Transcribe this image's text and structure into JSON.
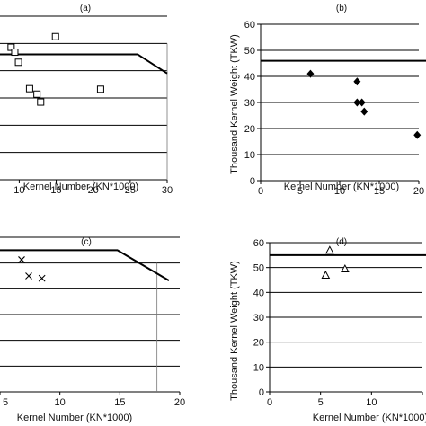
{
  "chart_data": [
    {
      "panel": "(a)",
      "type": "scatter",
      "xlabel": "Kernel Number (KN*1000)",
      "ylabel": "",
      "xlim": [
        0,
        30
      ],
      "ylim": [
        0,
        60
      ],
      "xticks": [
        0,
        5,
        10,
        15,
        20,
        25,
        30
      ],
      "xtick_labels": [
        "",
        "",
        "10",
        "15",
        "20",
        "25",
        "30"
      ],
      "yticks": [
        0,
        10,
        20,
        30,
        40,
        50,
        60
      ],
      "ytick_labels": [],
      "grid": "horizontal",
      "marker": "square",
      "boundary": [
        [
          0,
          46
        ],
        [
          26,
          46
        ],
        [
          30,
          39
        ]
      ],
      "vline_x": 30,
      "points": [
        {
          "x": 8.9,
          "y": 48.6
        },
        {
          "x": 9.4,
          "y": 46.8
        },
        {
          "x": 9.9,
          "y": 43.1
        },
        {
          "x": 14.9,
          "y": 52.5
        },
        {
          "x": 11.4,
          "y": 33.4
        },
        {
          "x": 12.4,
          "y": 31.4
        },
        {
          "x": 12.9,
          "y": 28.5
        },
        {
          "x": 21,
          "y": 33.2
        }
      ]
    },
    {
      "panel": "(b)",
      "type": "scatter",
      "xlabel": "Kernel Number (KN*1000)",
      "ylabel": "Thousand Kernel Weight (TKW)",
      "xlim": [
        0,
        20
      ],
      "ylim": [
        0,
        60
      ],
      "xticks": [
        0,
        5,
        10,
        15,
        20
      ],
      "xtick_labels": [
        "0",
        "5",
        "10",
        "15",
        "20"
      ],
      "yticks": [
        0,
        10,
        20,
        30,
        40,
        50,
        60
      ],
      "ytick_labels": [
        "0",
        "10",
        "20",
        "30",
        "40",
        "50",
        "60"
      ],
      "grid": "horizontal",
      "marker": "diamond",
      "boundary": [
        [
          0,
          46
        ],
        [
          21,
          46
        ]
      ],
      "points": [
        {
          "x": 6.3,
          "y": 41
        },
        {
          "x": 12.2,
          "y": 38
        },
        {
          "x": 12.2,
          "y": 30
        },
        {
          "x": 12.8,
          "y": 30
        },
        {
          "x": 13.1,
          "y": 26.5
        },
        {
          "x": 19.8,
          "y": 17.5
        }
      ]
    },
    {
      "panel": "(c)",
      "type": "scatter",
      "xlabel": "Kernel Number (KN*1000)",
      "ylabel": "",
      "xlim": [
        5,
        20
      ],
      "ylim": [
        0,
        60
      ],
      "xticks": [
        5,
        10,
        15,
        20
      ],
      "xtick_labels": [
        "5",
        "10",
        "15",
        "20"
      ],
      "yticks": [
        0,
        10,
        20,
        30,
        40,
        50,
        60
      ],
      "ytick_labels": [],
      "grid": "horizontal",
      "marker": "x",
      "boundary": [
        [
          0,
          55
        ],
        [
          14.8,
          55
        ],
        [
          19.1,
          43.2
        ]
      ],
      "vline_x": 18.1,
      "points": [
        {
          "x": 6.8,
          "y": 51.3
        },
        {
          "x": 7.4,
          "y": 45
        },
        {
          "x": 8.5,
          "y": 44.1
        }
      ]
    },
    {
      "panel": "(d)",
      "type": "scatter",
      "xlabel": "Kernel Number (KN*1000)",
      "ylabel": "Thousand Kernel Weight (TKW)",
      "xlim": [
        0,
        15
      ],
      "ylim": [
        0,
        60
      ],
      "xticks": [
        0,
        5,
        10,
        15
      ],
      "xtick_labels": [
        "0",
        "5",
        "10",
        ""
      ],
      "yticks": [
        0,
        10,
        20,
        30,
        40,
        50,
        60
      ],
      "ytick_labels": [
        "0",
        "10",
        "20",
        "30",
        "40",
        "50",
        "60"
      ],
      "grid": "horizontal",
      "marker": "triangle",
      "boundary": [
        [
          0,
          55
        ],
        [
          16,
          55
        ]
      ],
      "points": [
        {
          "x": 5.9,
          "y": 57
        },
        {
          "x": 5.5,
          "y": 47
        },
        {
          "x": 7.4,
          "y": 49.5
        }
      ]
    }
  ]
}
